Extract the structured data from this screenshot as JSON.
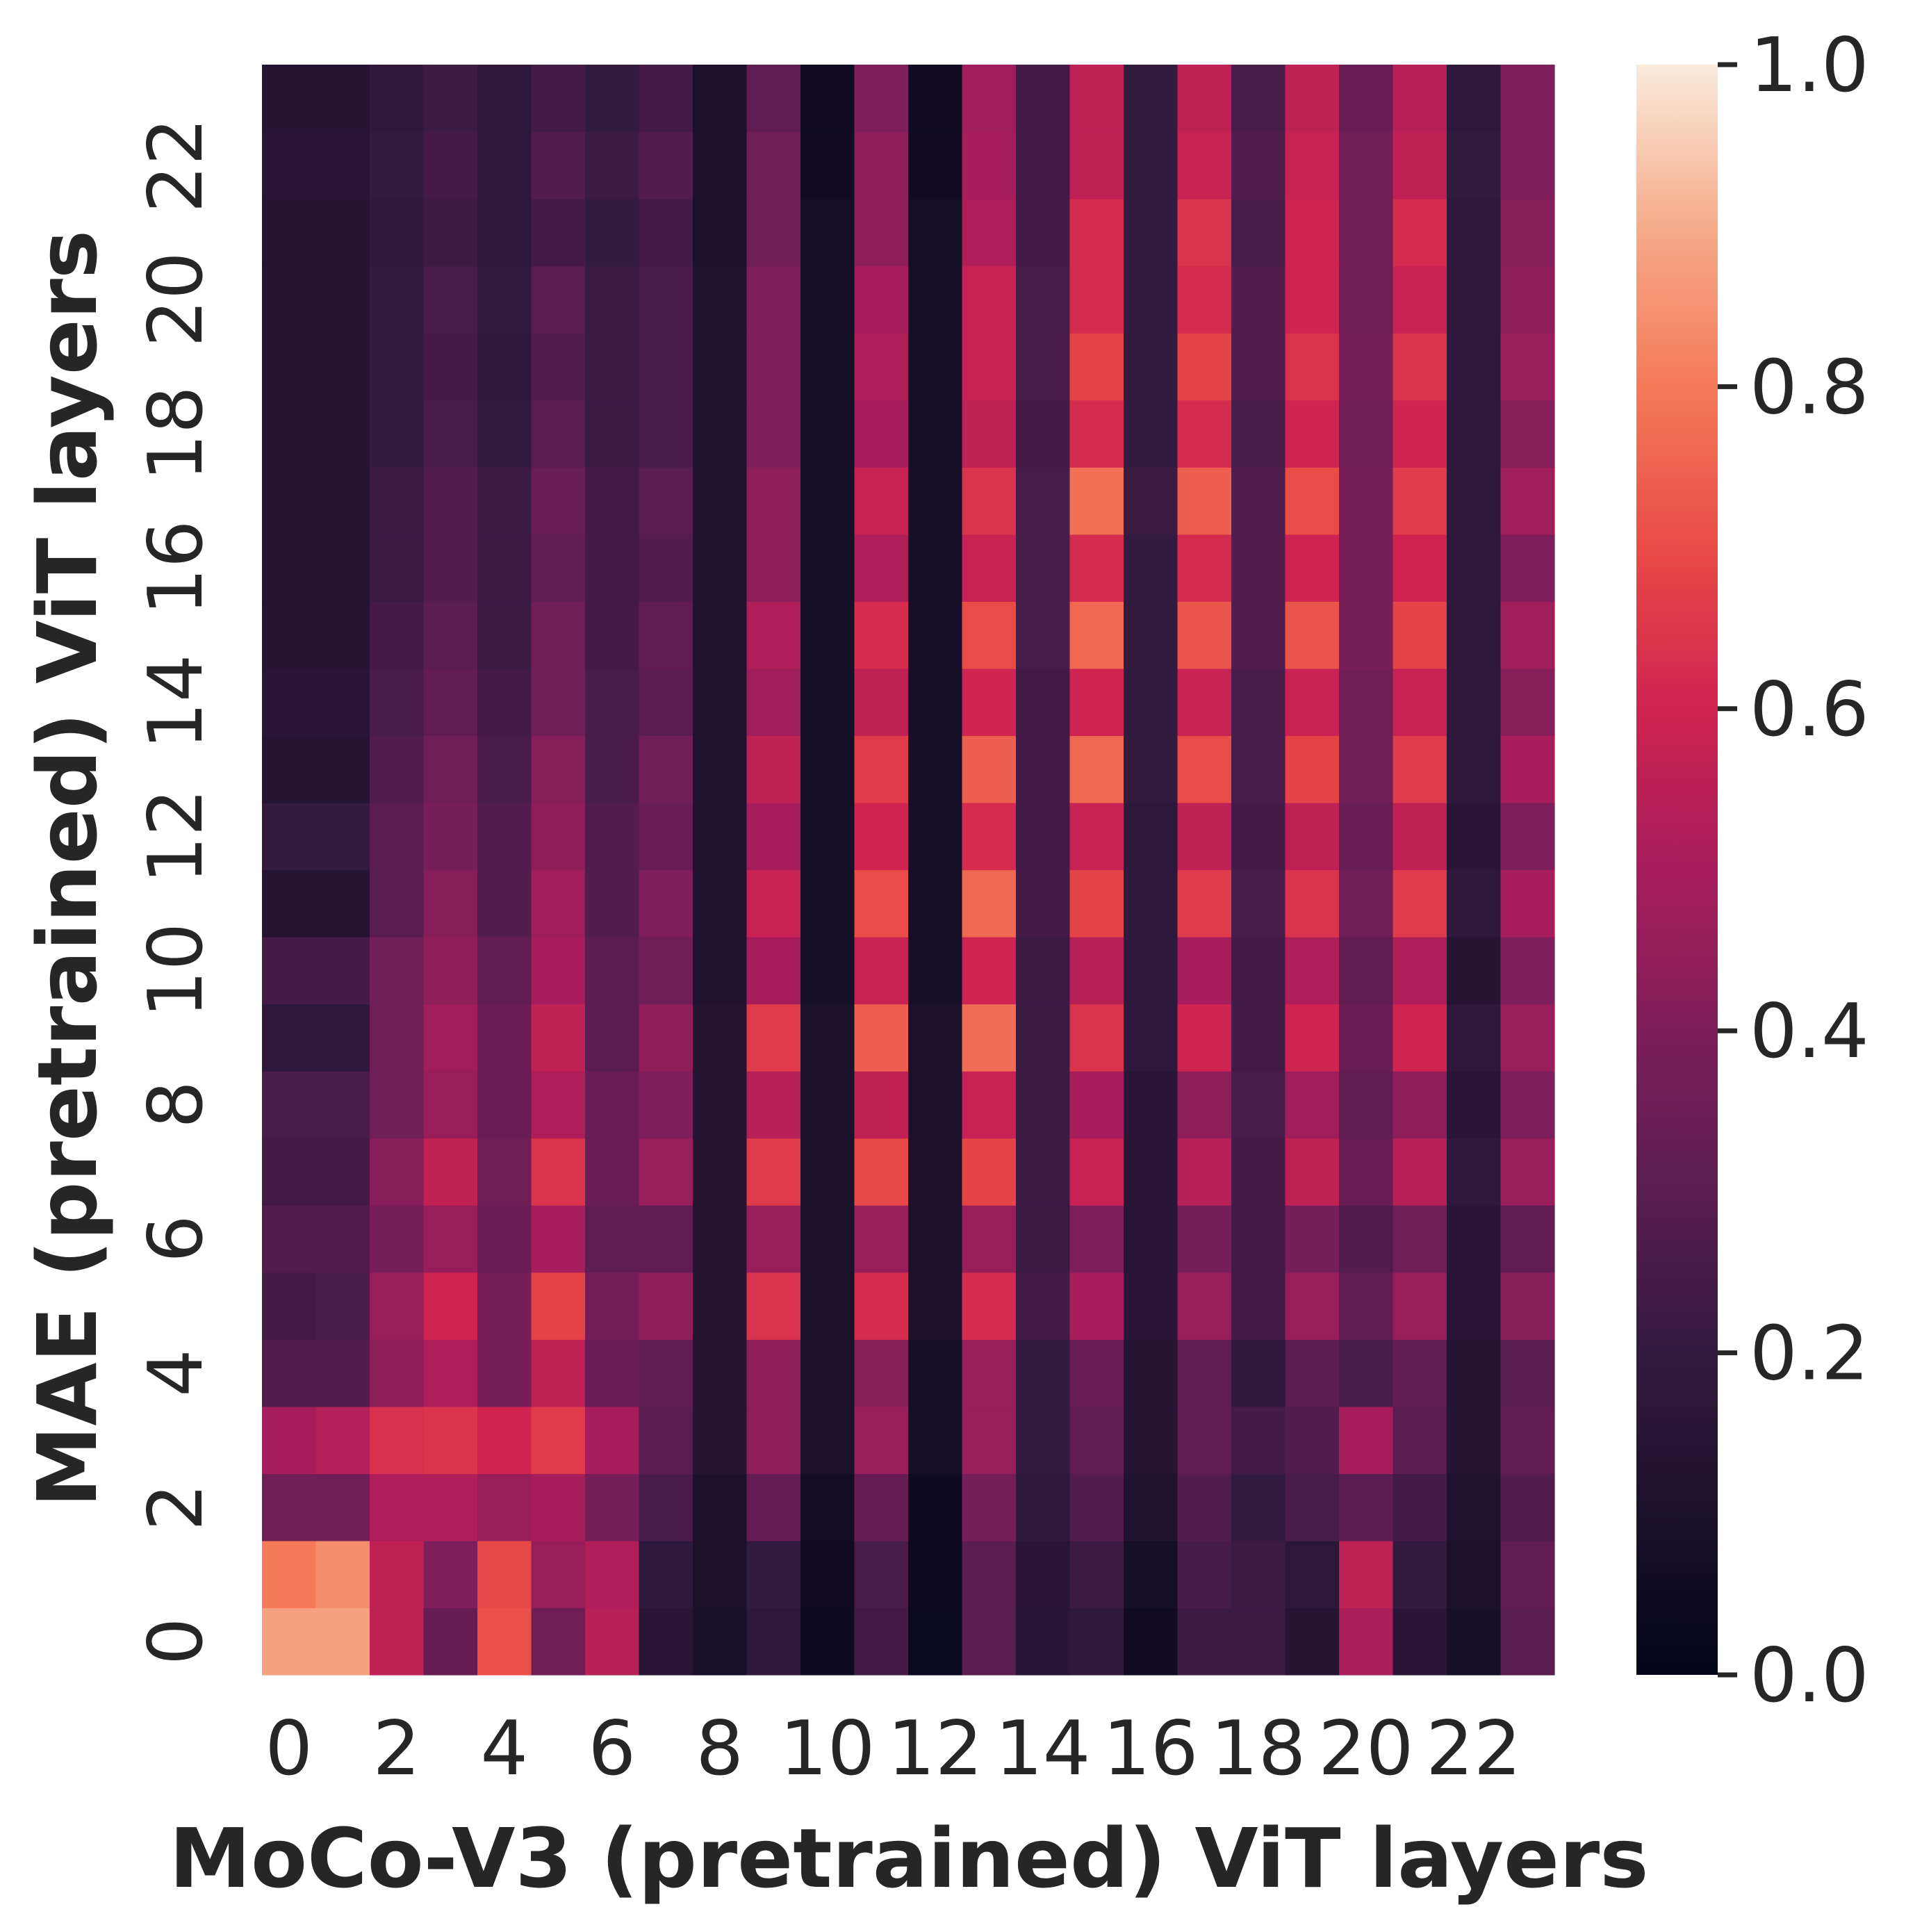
{
  "chart_data": {
    "type": "heatmap",
    "xlabel": "MoCo-V3 (pretrained) ViT layers",
    "ylabel": "MAE (pretrained) ViT layers",
    "x_tick_labels": [
      "0",
      "2",
      "4",
      "6",
      "8",
      "10",
      "12",
      "14",
      "16",
      "18",
      "20",
      "22"
    ],
    "y_tick_labels": [
      "0",
      "2",
      "4",
      "6",
      "8",
      "10",
      "12",
      "14",
      "16",
      "18",
      "20",
      "22"
    ],
    "n_cols": 24,
    "n_rows": 24,
    "color_range": [
      0.0,
      1.0
    ],
    "colormap": "rocket",
    "colorbar_ticks": [
      "0.0",
      "0.2",
      "0.4",
      "0.6",
      "0.8",
      "1.0"
    ],
    "rows_note": "values[i] is MAE layer i (row 0 at bottom); each row lists MoCo-V3 layers 0..23",
    "values": [
      [
        0.88,
        0.88,
        0.56,
        0.33,
        0.71,
        0.36,
        0.54,
        0.16,
        0.09,
        0.18,
        0.05,
        0.24,
        0.03,
        0.3,
        0.15,
        0.18,
        0.06,
        0.22,
        0.22,
        0.14,
        0.51,
        0.16,
        0.08,
        0.3
      ],
      [
        0.8,
        0.84,
        0.56,
        0.4,
        0.69,
        0.46,
        0.52,
        0.18,
        0.1,
        0.2,
        0.06,
        0.26,
        0.04,
        0.3,
        0.16,
        0.22,
        0.08,
        0.25,
        0.22,
        0.17,
        0.56,
        0.2,
        0.1,
        0.32
      ],
      [
        0.36,
        0.36,
        0.52,
        0.52,
        0.46,
        0.5,
        0.38,
        0.26,
        0.1,
        0.33,
        0.07,
        0.33,
        0.05,
        0.38,
        0.18,
        0.28,
        0.12,
        0.28,
        0.2,
        0.26,
        0.3,
        0.24,
        0.12,
        0.28
      ],
      [
        0.5,
        0.53,
        0.63,
        0.64,
        0.6,
        0.66,
        0.5,
        0.3,
        0.14,
        0.44,
        0.1,
        0.46,
        0.08,
        0.46,
        0.2,
        0.32,
        0.14,
        0.32,
        0.24,
        0.28,
        0.5,
        0.3,
        0.14,
        0.32
      ],
      [
        0.28,
        0.28,
        0.44,
        0.52,
        0.38,
        0.56,
        0.34,
        0.32,
        0.14,
        0.44,
        0.1,
        0.42,
        0.08,
        0.46,
        0.2,
        0.34,
        0.14,
        0.32,
        0.18,
        0.3,
        0.26,
        0.32,
        0.14,
        0.3
      ],
      [
        0.24,
        0.26,
        0.46,
        0.6,
        0.38,
        0.68,
        0.38,
        0.44,
        0.14,
        0.64,
        0.1,
        0.62,
        0.1,
        0.62,
        0.24,
        0.5,
        0.16,
        0.46,
        0.24,
        0.46,
        0.32,
        0.46,
        0.16,
        0.42
      ],
      [
        0.28,
        0.28,
        0.38,
        0.46,
        0.34,
        0.5,
        0.32,
        0.32,
        0.14,
        0.46,
        0.1,
        0.46,
        0.1,
        0.46,
        0.22,
        0.4,
        0.16,
        0.38,
        0.24,
        0.38,
        0.28,
        0.36,
        0.16,
        0.32
      ],
      [
        0.24,
        0.24,
        0.42,
        0.56,
        0.36,
        0.64,
        0.34,
        0.46,
        0.14,
        0.66,
        0.1,
        0.69,
        0.1,
        0.68,
        0.22,
        0.58,
        0.16,
        0.54,
        0.24,
        0.56,
        0.34,
        0.54,
        0.18,
        0.46
      ],
      [
        0.26,
        0.26,
        0.36,
        0.46,
        0.34,
        0.52,
        0.34,
        0.4,
        0.14,
        0.54,
        0.1,
        0.56,
        0.1,
        0.58,
        0.22,
        0.5,
        0.16,
        0.44,
        0.26,
        0.48,
        0.32,
        0.44,
        0.16,
        0.4
      ],
      [
        0.18,
        0.18,
        0.36,
        0.48,
        0.34,
        0.56,
        0.3,
        0.44,
        0.14,
        0.66,
        0.1,
        0.74,
        0.1,
        0.77,
        0.22,
        0.64,
        0.18,
        0.6,
        0.24,
        0.6,
        0.34,
        0.6,
        0.18,
        0.46
      ],
      [
        0.24,
        0.24,
        0.36,
        0.44,
        0.32,
        0.5,
        0.3,
        0.36,
        0.12,
        0.5,
        0.08,
        0.58,
        0.08,
        0.6,
        0.22,
        0.54,
        0.18,
        0.5,
        0.24,
        0.52,
        0.32,
        0.52,
        0.14,
        0.4
      ],
      [
        0.14,
        0.14,
        0.3,
        0.42,
        0.28,
        0.48,
        0.28,
        0.4,
        0.12,
        0.58,
        0.08,
        0.7,
        0.08,
        0.76,
        0.24,
        0.68,
        0.18,
        0.66,
        0.26,
        0.64,
        0.36,
        0.66,
        0.18,
        0.5
      ],
      [
        0.2,
        0.2,
        0.3,
        0.38,
        0.28,
        0.44,
        0.28,
        0.34,
        0.12,
        0.5,
        0.08,
        0.6,
        0.08,
        0.62,
        0.24,
        0.58,
        0.18,
        0.56,
        0.24,
        0.56,
        0.34,
        0.56,
        0.16,
        0.4
      ],
      [
        0.14,
        0.14,
        0.28,
        0.36,
        0.26,
        0.42,
        0.26,
        0.36,
        0.12,
        0.56,
        0.08,
        0.66,
        0.08,
        0.74,
        0.24,
        0.76,
        0.2,
        0.7,
        0.26,
        0.68,
        0.36,
        0.66,
        0.18,
        0.5
      ],
      [
        0.16,
        0.16,
        0.26,
        0.32,
        0.24,
        0.36,
        0.26,
        0.3,
        0.12,
        0.48,
        0.08,
        0.56,
        0.08,
        0.6,
        0.24,
        0.6,
        0.2,
        0.58,
        0.26,
        0.58,
        0.36,
        0.58,
        0.18,
        0.42
      ],
      [
        0.14,
        0.14,
        0.24,
        0.3,
        0.22,
        0.36,
        0.24,
        0.32,
        0.12,
        0.52,
        0.08,
        0.62,
        0.08,
        0.7,
        0.26,
        0.76,
        0.2,
        0.72,
        0.28,
        0.72,
        0.38,
        0.68,
        0.18,
        0.48
      ],
      [
        0.14,
        0.14,
        0.22,
        0.28,
        0.22,
        0.32,
        0.24,
        0.28,
        0.12,
        0.44,
        0.08,
        0.52,
        0.08,
        0.58,
        0.26,
        0.62,
        0.2,
        0.62,
        0.28,
        0.6,
        0.38,
        0.6,
        0.18,
        0.4
      ],
      [
        0.14,
        0.14,
        0.22,
        0.28,
        0.22,
        0.34,
        0.24,
        0.3,
        0.12,
        0.44,
        0.08,
        0.58,
        0.08,
        0.64,
        0.26,
        0.78,
        0.22,
        0.74,
        0.28,
        0.7,
        0.38,
        0.66,
        0.18,
        0.48
      ],
      [
        0.14,
        0.14,
        0.2,
        0.26,
        0.2,
        0.3,
        0.22,
        0.26,
        0.12,
        0.4,
        0.08,
        0.5,
        0.08,
        0.56,
        0.24,
        0.62,
        0.2,
        0.62,
        0.26,
        0.6,
        0.36,
        0.6,
        0.18,
        0.42
      ],
      [
        0.14,
        0.14,
        0.2,
        0.24,
        0.18,
        0.28,
        0.22,
        0.26,
        0.12,
        0.4,
        0.08,
        0.52,
        0.08,
        0.58,
        0.26,
        0.68,
        0.2,
        0.68,
        0.28,
        0.64,
        0.38,
        0.64,
        0.18,
        0.46
      ],
      [
        0.14,
        0.14,
        0.2,
        0.26,
        0.2,
        0.3,
        0.22,
        0.26,
        0.12,
        0.4,
        0.08,
        0.5,
        0.08,
        0.58,
        0.26,
        0.62,
        0.2,
        0.62,
        0.28,
        0.6,
        0.36,
        0.58,
        0.18,
        0.44
      ],
      [
        0.14,
        0.14,
        0.18,
        0.22,
        0.18,
        0.24,
        0.2,
        0.24,
        0.1,
        0.36,
        0.08,
        0.44,
        0.08,
        0.52,
        0.24,
        0.62,
        0.2,
        0.64,
        0.26,
        0.6,
        0.36,
        0.62,
        0.18,
        0.42
      ],
      [
        0.16,
        0.16,
        0.2,
        0.24,
        0.18,
        0.28,
        0.22,
        0.28,
        0.1,
        0.36,
        0.06,
        0.44,
        0.06,
        0.5,
        0.24,
        0.56,
        0.2,
        0.58,
        0.28,
        0.58,
        0.36,
        0.56,
        0.2,
        0.4
      ],
      [
        0.14,
        0.14,
        0.18,
        0.22,
        0.18,
        0.24,
        0.2,
        0.24,
        0.1,
        0.32,
        0.06,
        0.4,
        0.06,
        0.48,
        0.24,
        0.56,
        0.2,
        0.56,
        0.26,
        0.56,
        0.34,
        0.54,
        0.18,
        0.4
      ]
    ]
  }
}
